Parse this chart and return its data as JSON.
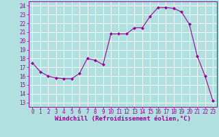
{
  "x": [
    0,
    1,
    2,
    3,
    4,
    5,
    6,
    7,
    8,
    9,
    10,
    11,
    12,
    13,
    14,
    15,
    16,
    17,
    18,
    19,
    20,
    21,
    22,
    23
  ],
  "y": [
    17.5,
    16.5,
    16.0,
    15.8,
    15.7,
    15.7,
    16.3,
    18.0,
    17.8,
    17.3,
    20.8,
    20.8,
    20.8,
    21.5,
    21.5,
    22.8,
    23.8,
    23.8,
    23.7,
    23.3,
    21.9,
    18.3,
    16.0,
    13.2
  ],
  "line_color": "#990099",
  "marker": "D",
  "marker_size": 2.0,
  "xlabel": "Windchill (Refroidissement éolien,°C)",
  "ylabel_ticks": [
    13,
    14,
    15,
    16,
    17,
    18,
    19,
    20,
    21,
    22,
    23,
    24
  ],
  "xlim": [
    -0.5,
    23.5
  ],
  "ylim": [
    12.5,
    24.5
  ],
  "bg_color": "#b2e0e0",
  "grid_color": "#ffffff",
  "tick_fontsize": 5.5,
  "xlabel_fontsize": 6.5
}
